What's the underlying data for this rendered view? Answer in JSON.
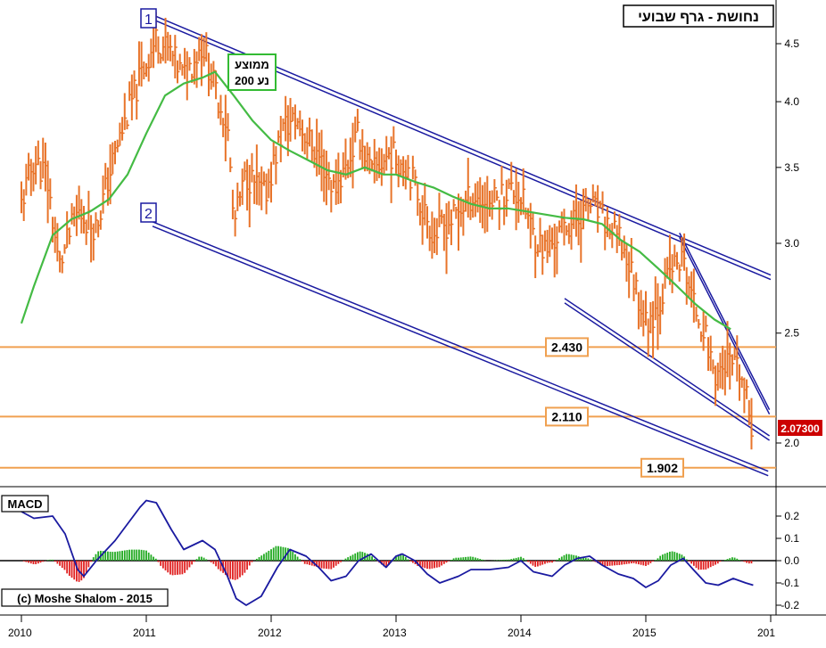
{
  "chart_data": [
    {
      "type": "bar",
      "subtype": "weekly-ohlc",
      "title": "נחושת - גרף שבועי",
      "y_scale": "log",
      "ylim": [
        1.83,
        4.95
      ],
      "y_ticks": [
        {
          "value": 4.5,
          "label": "4.5"
        },
        {
          "value": 4.0,
          "label": "4.0"
        },
        {
          "value": 3.5,
          "label": "3.5"
        },
        {
          "value": 3.0,
          "label": "3.0"
        },
        {
          "value": 2.5,
          "label": "2.5"
        },
        {
          "value": 2.0,
          "label": "2.0"
        }
      ],
      "x_ticks": [
        "2010",
        "2011",
        "2012",
        "2013",
        "2014",
        "2015",
        "201"
      ],
      "last_price_label": "2.07300",
      "price_path": [
        [
          2010.0,
          3.25
        ],
        [
          2010.1,
          3.55
        ],
        [
          2010.2,
          3.45
        ],
        [
          2010.3,
          2.85
        ],
        [
          2010.45,
          3.2
        ],
        [
          2010.6,
          3.1
        ],
        [
          2010.75,
          3.6
        ],
        [
          2010.95,
          4.2
        ],
        [
          2011.08,
          4.55
        ],
        [
          2011.2,
          4.4
        ],
        [
          2011.3,
          4.2
        ],
        [
          2011.45,
          4.5
        ],
        [
          2011.55,
          4.1
        ],
        [
          2011.65,
          3.8
        ],
        [
          2011.7,
          3.1
        ],
        [
          2011.8,
          3.45
        ],
        [
          2011.95,
          3.3
        ],
        [
          2012.1,
          3.8
        ],
        [
          2012.2,
          3.85
        ],
        [
          2012.4,
          3.55
        ],
        [
          2012.5,
          3.35
        ],
        [
          2012.6,
          3.5
        ],
        [
          2012.7,
          3.75
        ],
        [
          2012.8,
          3.45
        ],
        [
          2012.95,
          3.6
        ],
        [
          2013.1,
          3.5
        ],
        [
          2013.2,
          3.25
        ],
        [
          2013.3,
          3.05
        ],
        [
          2013.45,
          3.15
        ],
        [
          2013.6,
          3.3
        ],
        [
          2013.75,
          3.25
        ],
        [
          2013.9,
          3.35
        ],
        [
          2014.0,
          3.3
        ],
        [
          2014.1,
          3.05
        ],
        [
          2014.2,
          2.95
        ],
        [
          2014.35,
          3.1
        ],
        [
          2014.45,
          3.15
        ],
        [
          2014.55,
          3.25
        ],
        [
          2014.7,
          3.1
        ],
        [
          2014.8,
          3.0
        ],
        [
          2014.9,
          2.8
        ],
        [
          2015.0,
          2.55
        ],
        [
          2015.1,
          2.65
        ],
        [
          2015.2,
          2.85
        ],
        [
          2015.3,
          2.9
        ],
        [
          2015.38,
          2.65
        ],
        [
          2015.45,
          2.55
        ],
        [
          2015.55,
          2.3
        ],
        [
          2015.65,
          2.35
        ],
        [
          2015.75,
          2.3
        ],
        [
          2015.8,
          2.2
        ],
        [
          2015.85,
          2.06
        ]
      ],
      "series": [
        {
          "name": "ממוצע נע 200",
          "color": "#44bb44",
          "points": [
            [
              2010.0,
              2.55
            ],
            [
              2010.1,
              2.75
            ],
            [
              2010.25,
              3.05
            ],
            [
              2010.4,
              3.15
            ],
            [
              2010.55,
              3.2
            ],
            [
              2010.7,
              3.28
            ],
            [
              2010.85,
              3.45
            ],
            [
              2011.0,
              3.75
            ],
            [
              2011.15,
              4.05
            ],
            [
              2011.3,
              4.15
            ],
            [
              2011.45,
              4.2
            ],
            [
              2011.55,
              4.25
            ],
            [
              2011.7,
              4.05
            ],
            [
              2011.85,
              3.85
            ],
            [
              2012.0,
              3.7
            ],
            [
              2012.15,
              3.62
            ],
            [
              2012.3,
              3.55
            ],
            [
              2012.45,
              3.48
            ],
            [
              2012.6,
              3.45
            ],
            [
              2012.75,
              3.5
            ],
            [
              2012.9,
              3.45
            ],
            [
              2013.0,
              3.45
            ],
            [
              2013.15,
              3.4
            ],
            [
              2013.3,
              3.36
            ],
            [
              2013.45,
              3.3
            ],
            [
              2013.6,
              3.25
            ],
            [
              2013.75,
              3.22
            ],
            [
              2013.9,
              3.22
            ],
            [
              2014.05,
              3.2
            ],
            [
              2014.2,
              3.18
            ],
            [
              2014.35,
              3.16
            ],
            [
              2014.5,
              3.15
            ],
            [
              2014.65,
              3.12
            ],
            [
              2014.8,
              3.02
            ],
            [
              2014.95,
              2.95
            ],
            [
              2015.1,
              2.85
            ],
            [
              2015.25,
              2.75
            ],
            [
              2015.4,
              2.65
            ],
            [
              2015.55,
              2.57
            ],
            [
              2015.68,
              2.52
            ]
          ]
        }
      ],
      "horizontal_levels": [
        {
          "value": 2.43,
          "label": "2.430",
          "color": "#f0a050"
        },
        {
          "value": 2.11,
          "label": "2.110",
          "color": "#f0a050"
        },
        {
          "value": 1.902,
          "label": "1.902",
          "color": "#f0a050"
        }
      ],
      "trendlines": [
        {
          "from": [
            2011.05,
            4.75
          ],
          "to": [
            2016.0,
            2.8
          ],
          "color": "#1a1aa0"
        },
        {
          "from": [
            2011.05,
            3.12
          ],
          "to": [
            2015.98,
            1.88
          ],
          "color": "#1a1aa0"
        },
        {
          "from": [
            2014.35,
            2.67
          ],
          "to": [
            2015.99,
            2.02
          ],
          "color": "#1a1aa0"
        },
        {
          "from": [
            2015.27,
            3.05
          ],
          "to": [
            2015.99,
            2.13
          ],
          "color": "#1a1aa0"
        }
      ],
      "annotations": [
        {
          "label": "1",
          "at": [
            2011.0,
            4.9
          ]
        },
        {
          "label": "2",
          "at": [
            2011.0,
            3.2
          ]
        },
        {
          "label": "ממוצע",
          "line2": "נע 200"
        }
      ]
    },
    {
      "type": "bar",
      "subtype": "macd",
      "title": "MACD",
      "ylim": [
        -0.23,
        0.31
      ],
      "y_ticks": [
        {
          "value": 0.2,
          "label": "0.2"
        },
        {
          "value": 0.1,
          "label": "0.1"
        },
        {
          "value": 0.0,
          "label": "0.0"
        },
        {
          "value": -0.1,
          "label": "-0.1"
        },
        {
          "value": -0.2,
          "label": "-0.2"
        }
      ],
      "line": [
        [
          2010.0,
          0.22
        ],
        [
          2010.1,
          0.19
        ],
        [
          2010.25,
          0.2
        ],
        [
          2010.35,
          0.12
        ],
        [
          2010.45,
          -0.04
        ],
        [
          2010.5,
          -0.07
        ],
        [
          2010.6,
          0.0
        ],
        [
          2010.75,
          0.09
        ],
        [
          2010.95,
          0.24
        ],
        [
          2011.0,
          0.27
        ],
        [
          2011.08,
          0.26
        ],
        [
          2011.2,
          0.14
        ],
        [
          2011.3,
          0.05
        ],
        [
          2011.45,
          0.09
        ],
        [
          2011.55,
          0.05
        ],
        [
          2011.65,
          -0.07
        ],
        [
          2011.72,
          -0.17
        ],
        [
          2011.8,
          -0.2
        ],
        [
          2011.92,
          -0.16
        ],
        [
          2012.05,
          -0.03
        ],
        [
          2012.15,
          0.05
        ],
        [
          2012.28,
          0.02
        ],
        [
          2012.38,
          -0.03
        ],
        [
          2012.48,
          -0.09
        ],
        [
          2012.6,
          -0.07
        ],
        [
          2012.7,
          0.0
        ],
        [
          2012.8,
          0.03
        ],
        [
          2012.92,
          -0.03
        ],
        [
          2013.0,
          0.02
        ],
        [
          2013.05,
          0.03
        ],
        [
          2013.15,
          0.0
        ],
        [
          2013.25,
          -0.06
        ],
        [
          2013.35,
          -0.1
        ],
        [
          2013.5,
          -0.07
        ],
        [
          2013.6,
          -0.04
        ],
        [
          2013.75,
          -0.04
        ],
        [
          2013.9,
          -0.03
        ],
        [
          2014.0,
          0.0
        ],
        [
          2014.1,
          -0.05
        ],
        [
          2014.25,
          -0.07
        ],
        [
          2014.35,
          -0.02
        ],
        [
          2014.45,
          0.01
        ],
        [
          2014.55,
          0.02
        ],
        [
          2014.65,
          -0.02
        ],
        [
          2014.78,
          -0.06
        ],
        [
          2014.9,
          -0.08
        ],
        [
          2015.0,
          -0.12
        ],
        [
          2015.1,
          -0.09
        ],
        [
          2015.2,
          -0.02
        ],
        [
          2015.3,
          0.01
        ],
        [
          2015.38,
          -0.04
        ],
        [
          2015.48,
          -0.1
        ],
        [
          2015.58,
          -0.11
        ],
        [
          2015.7,
          -0.08
        ],
        [
          2015.8,
          -0.1
        ],
        [
          2015.86,
          -0.11
        ]
      ]
    }
  ],
  "legend_labels": {
    "moving_average_line1": "ממוצע",
    "moving_average_line2": "נע 200",
    "label_1": "1",
    "label_2": "2",
    "title_box": "נחושת - גרף שבועי",
    "macd_box": "MACD",
    "copyright": "(c) Moshe Shalom - 2015"
  },
  "colors": {
    "price_bars": "#e8742a",
    "moving_average": "#44bb44",
    "trendlines": "#1a1aa0",
    "levels": "#f0a050",
    "macd_line": "#1a1aa0",
    "macd_hist_positive": "#22aa22",
    "macd_hist_negative": "#e02020",
    "last_price_badge": "#cc0000"
  }
}
